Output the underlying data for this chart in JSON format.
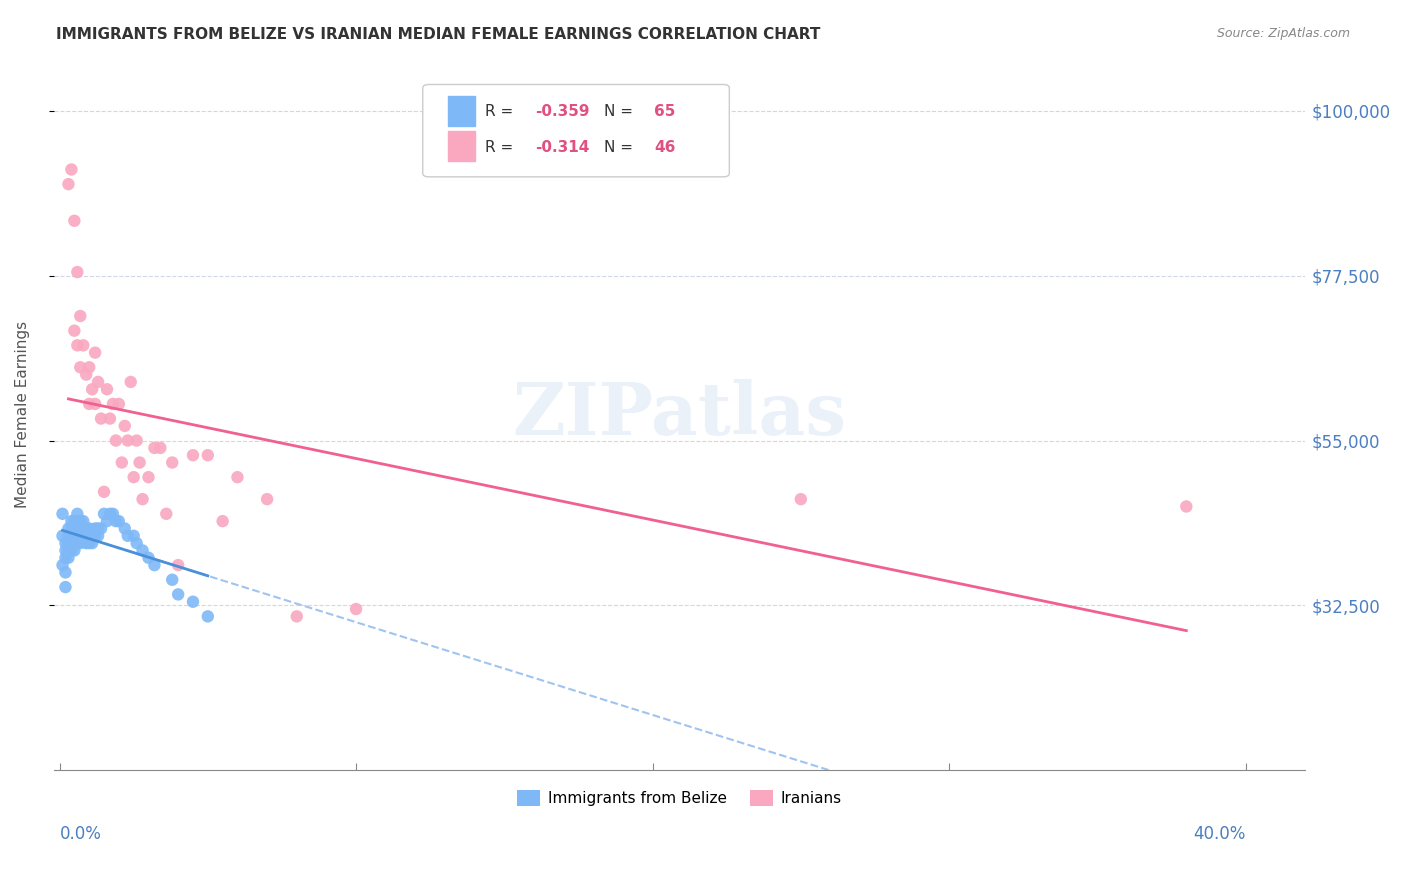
{
  "title": "IMMIGRANTS FROM BELIZE VS IRANIAN MEDIAN FEMALE EARNINGS CORRELATION CHART",
  "source": "Source: ZipAtlas.com",
  "ylabel": "Median Female Earnings",
  "ytick_labels": [
    "$32,500",
    "$55,000",
    "$77,500",
    "$100,000"
  ],
  "ytick_values": [
    32500,
    55000,
    77500,
    100000
  ],
  "ymin": 10000,
  "ymax": 107000,
  "xmin": -0.002,
  "xmax": 0.42,
  "belize_color": "#7eb8f7",
  "iranian_color": "#f9a8c0",
  "belize_line_color": "#4a90d9",
  "iranian_line_color": "#f06090",
  "dashed_line_color": "#a0c4f0",
  "background_color": "#ffffff",
  "grid_color": "#d0d8e8",
  "axis_color": "#888888",
  "title_color": "#333333",
  "label_color": "#4a7fc1",
  "watermark": "ZIPatlas",
  "belize_x": [
    0.001,
    0.001,
    0.001,
    0.002,
    0.002,
    0.002,
    0.002,
    0.002,
    0.003,
    0.003,
    0.003,
    0.003,
    0.003,
    0.004,
    0.004,
    0.004,
    0.004,
    0.004,
    0.005,
    0.005,
    0.005,
    0.005,
    0.005,
    0.006,
    0.006,
    0.006,
    0.006,
    0.006,
    0.007,
    0.007,
    0.007,
    0.007,
    0.008,
    0.008,
    0.008,
    0.009,
    0.009,
    0.009,
    0.01,
    0.01,
    0.01,
    0.011,
    0.011,
    0.012,
    0.012,
    0.013,
    0.013,
    0.014,
    0.015,
    0.016,
    0.017,
    0.018,
    0.019,
    0.02,
    0.022,
    0.023,
    0.025,
    0.026,
    0.028,
    0.03,
    0.032,
    0.038,
    0.04,
    0.045,
    0.05
  ],
  "belize_y": [
    45000,
    42000,
    38000,
    41000,
    40000,
    39000,
    37000,
    35000,
    43000,
    42000,
    41000,
    40000,
    39000,
    44000,
    43000,
    42000,
    41000,
    40000,
    44000,
    43000,
    42000,
    41000,
    40000,
    45000,
    44000,
    43000,
    42000,
    41000,
    44000,
    43000,
    42000,
    41000,
    44000,
    43000,
    42000,
    43000,
    42000,
    41000,
    43000,
    42000,
    41000,
    42000,
    41000,
    43000,
    42000,
    43000,
    42000,
    43000,
    45000,
    44000,
    45000,
    45000,
    44000,
    44000,
    43000,
    42000,
    42000,
    41000,
    40000,
    39000,
    38000,
    36000,
    34000,
    33000,
    31000
  ],
  "iranian_x": [
    0.003,
    0.004,
    0.005,
    0.005,
    0.006,
    0.006,
    0.007,
    0.007,
    0.008,
    0.009,
    0.01,
    0.01,
    0.011,
    0.012,
    0.012,
    0.013,
    0.014,
    0.015,
    0.016,
    0.017,
    0.018,
    0.019,
    0.02,
    0.021,
    0.022,
    0.023,
    0.024,
    0.025,
    0.026,
    0.027,
    0.028,
    0.03,
    0.032,
    0.034,
    0.036,
    0.038,
    0.04,
    0.045,
    0.05,
    0.055,
    0.06,
    0.07,
    0.08,
    0.1,
    0.25,
    0.38
  ],
  "iranian_y": [
    90000,
    92000,
    85000,
    70000,
    78000,
    68000,
    72000,
    65000,
    68000,
    64000,
    65000,
    60000,
    62000,
    67000,
    60000,
    63000,
    58000,
    48000,
    62000,
    58000,
    60000,
    55000,
    60000,
    52000,
    57000,
    55000,
    63000,
    50000,
    55000,
    52000,
    47000,
    50000,
    54000,
    54000,
    45000,
    52000,
    38000,
    53000,
    53000,
    44000,
    50000,
    47000,
    31000,
    32000,
    47000,
    46000
  ]
}
